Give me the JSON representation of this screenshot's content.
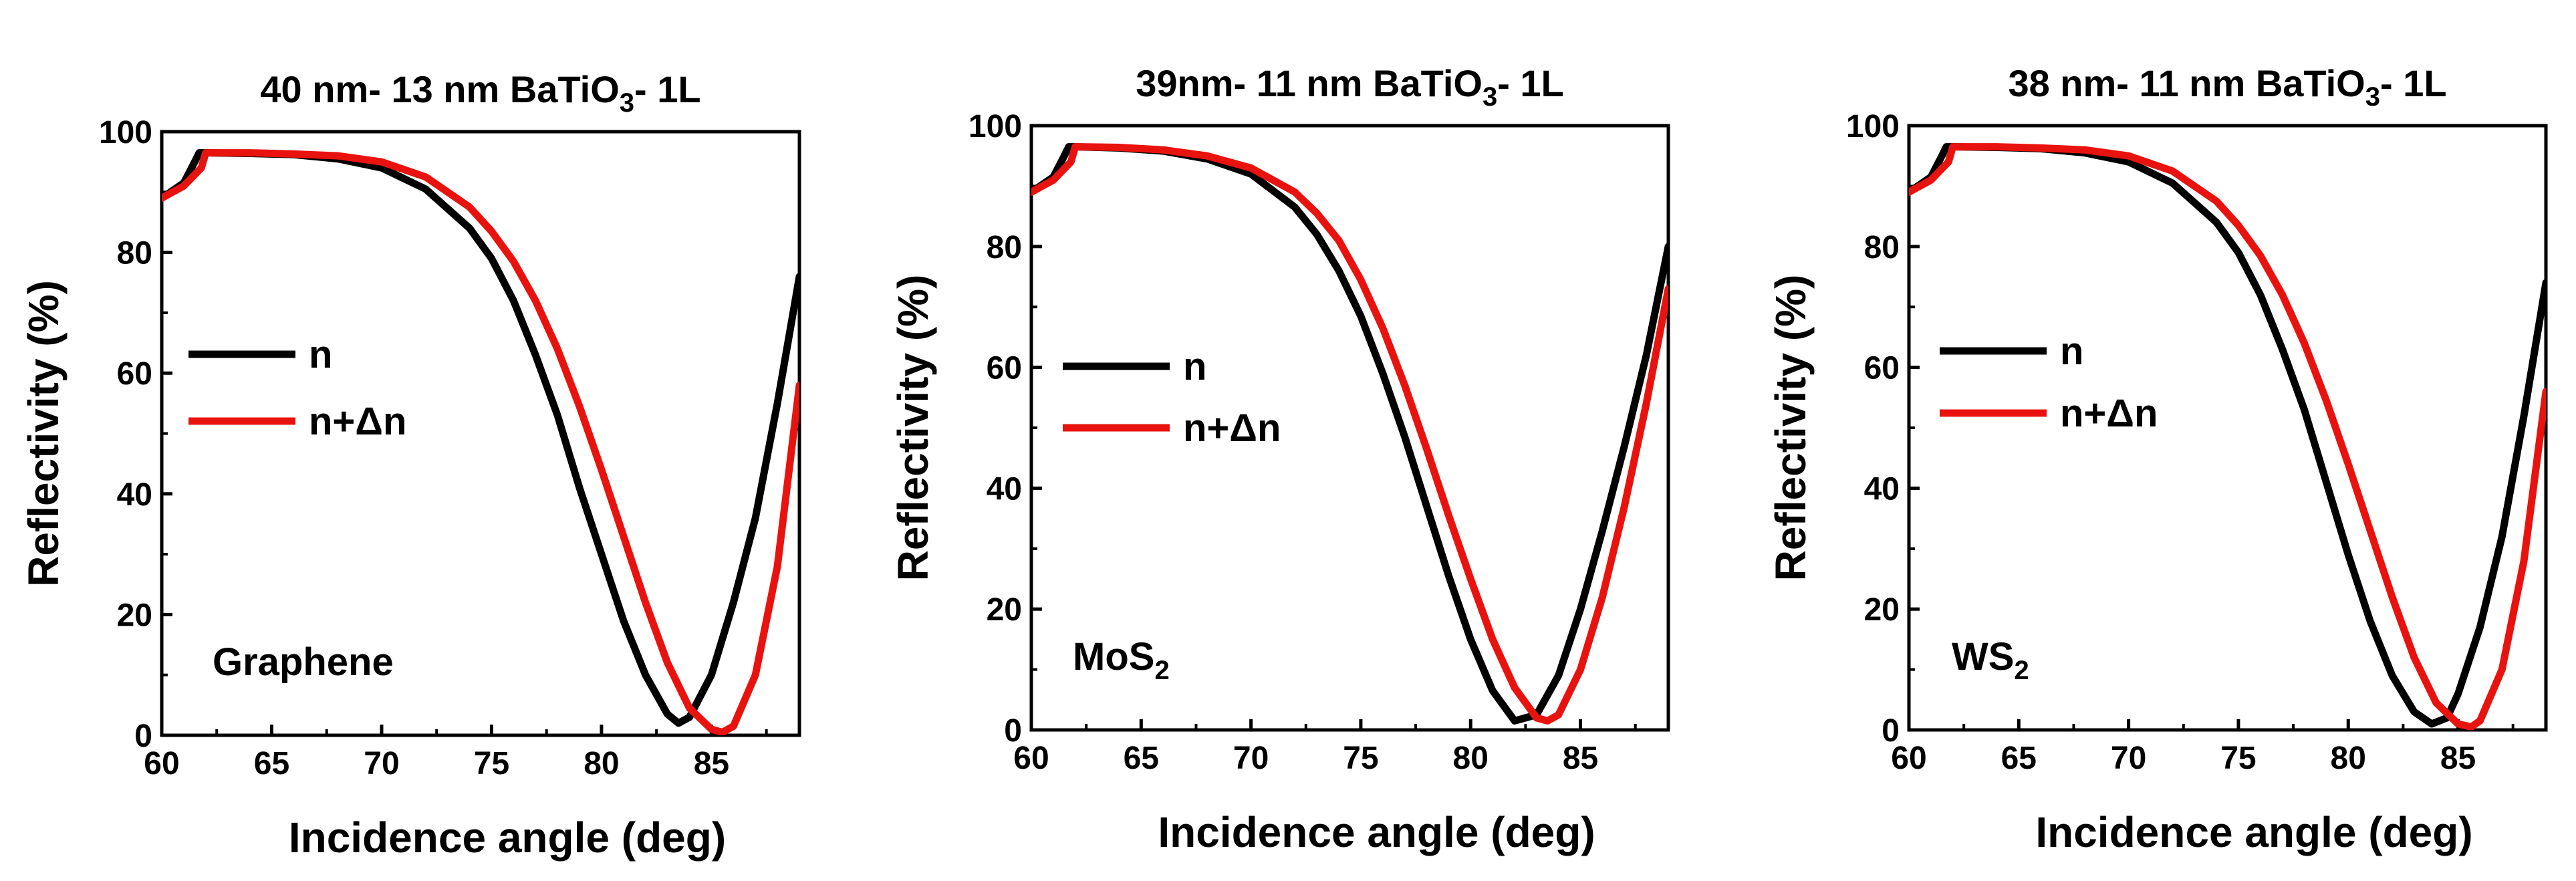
{
  "chart_data": [
    {
      "type": "line",
      "title": "40 nm- 13 nm BaTiO",
      "title_subscript": "3",
      "title_suffix": "- 1L",
      "xlabel": "Incidence angle (deg)",
      "ylabel": "Reflectivity (%)",
      "xlim": [
        60,
        89
      ],
      "ylim": [
        0,
        100
      ],
      "xticks": [
        60,
        65,
        70,
        75,
        80,
        85
      ],
      "yticks": [
        0,
        20,
        40,
        60,
        80,
        100
      ],
      "material": "Graphene",
      "material_subscript": "",
      "legend": [
        "n",
        "n+Δn"
      ],
      "series": [
        {
          "name": "n",
          "color": "#000000",
          "x": [
            60,
            61,
            61.5,
            61.7,
            62,
            64,
            66,
            68,
            70,
            72,
            74,
            75,
            76,
            77,
            78,
            79,
            80,
            81,
            82,
            83,
            83.5,
            84,
            85,
            86,
            87,
            88,
            89
          ],
          "y": [
            89,
            91.5,
            95,
            96.5,
            96.5,
            96.4,
            96.2,
            95.5,
            94,
            90.5,
            84,
            79,
            72,
            63,
            53,
            41,
            30,
            19,
            10,
            3.5,
            2,
            3,
            10,
            22,
            36,
            55,
            76
          ]
        },
        {
          "name": "n+Δn",
          "color": "#e8130f",
          "x": [
            60,
            61,
            61.8,
            62,
            62.2,
            64,
            66,
            68,
            70,
            72,
            74,
            75,
            76,
            77,
            78,
            79,
            80,
            81,
            82,
            83,
            84,
            85,
            85.5,
            86,
            87,
            88,
            89
          ],
          "y": [
            89,
            91,
            94,
            96.5,
            96.5,
            96.5,
            96.3,
            96,
            95,
            92.5,
            87.5,
            83.5,
            78.5,
            72,
            64,
            54.5,
            44,
            33,
            22,
            12,
            4.5,
            1,
            0.5,
            1.5,
            10,
            28,
            58
          ]
        }
      ]
    },
    {
      "type": "line",
      "title": "39nm- 11 nm BaTiO",
      "title_subscript": "3",
      "title_suffix": "- 1L",
      "xlabel": "Incidence angle (deg)",
      "ylabel": "Reflectivity (%)",
      "xlim": [
        60,
        89
      ],
      "ylim": [
        0,
        100
      ],
      "xticks": [
        60,
        65,
        70,
        75,
        80,
        85
      ],
      "yticks": [
        0,
        20,
        40,
        60,
        80,
        100
      ],
      "material": "MoS",
      "material_subscript": "2",
      "legend": [
        "n",
        "n+Δn"
      ],
      "series": [
        {
          "name": "n",
          "color": "#000000",
          "x": [
            60,
            61,
            61.5,
            61.7,
            62,
            64,
            66,
            68,
            70,
            72,
            73,
            74,
            75,
            76,
            77,
            78,
            79,
            80,
            81,
            82,
            83,
            84,
            85,
            86,
            87,
            88,
            89
          ],
          "y": [
            89,
            91.5,
            95,
            96.5,
            96.5,
            96.3,
            95.8,
            94.5,
            92,
            86.5,
            82,
            76,
            68.5,
            59,
            48.5,
            37,
            25.5,
            15,
            6.5,
            1.5,
            2.5,
            9,
            20,
            33,
            47,
            62,
            80
          ]
        },
        {
          "name": "n+Δn",
          "color": "#e8130f",
          "x": [
            60,
            61,
            61.8,
            62,
            62.2,
            64,
            66,
            68,
            70,
            72,
            73,
            74,
            75,
            76,
            77,
            78,
            79,
            80,
            81,
            82,
            83,
            83.5,
            84,
            85,
            86,
            87,
            88,
            89
          ],
          "y": [
            89,
            91,
            94,
            96.5,
            96.5,
            96.4,
            96,
            95,
            93,
            89,
            85.5,
            81,
            74.5,
            66.5,
            57,
            46.5,
            35.5,
            25,
            15,
            7,
            2,
            1.5,
            2.5,
            10,
            22,
            37,
            54,
            73
          ]
        }
      ]
    },
    {
      "type": "line",
      "title": "38 nm- 11 nm BaTiO",
      "title_subscript": "3",
      "title_suffix": "- 1L",
      "xlabel": "Incidence angle (deg)",
      "ylabel": "Reflectivity (%)",
      "xlim": [
        60,
        89
      ],
      "ylim": [
        0,
        100
      ],
      "xticks": [
        60,
        65,
        70,
        75,
        80,
        85
      ],
      "yticks": [
        0,
        20,
        40,
        60,
        80,
        100
      ],
      "material": "WS",
      "material_subscript": "2",
      "legend": [
        "n",
        "n+Δn"
      ],
      "series": [
        {
          "name": "n",
          "color": "#000000",
          "x": [
            60,
            61,
            61.5,
            61.7,
            62,
            64,
            66,
            68,
            70,
            72,
            74,
            75,
            76,
            77,
            78,
            79,
            80,
            81,
            82,
            83,
            83.8,
            84.5,
            85,
            86,
            87,
            88,
            89
          ],
          "y": [
            89,
            91.5,
            95,
            96.5,
            96.5,
            96.4,
            96.2,
            95.5,
            94,
            90.5,
            84,
            79,
            72,
            63,
            53,
            41,
            29,
            18,
            9,
            3,
            1,
            2,
            6,
            17,
            32,
            52,
            74
          ]
        },
        {
          "name": "n+Δn",
          "color": "#e8130f",
          "x": [
            60,
            61,
            61.8,
            62,
            62.2,
            64,
            66,
            68,
            70,
            72,
            74,
            75,
            76,
            77,
            78,
            79,
            80,
            81,
            82,
            83,
            84,
            85,
            85.6,
            86,
            87,
            88,
            89
          ],
          "y": [
            89,
            91,
            94,
            96.5,
            96.5,
            96.5,
            96.3,
            96,
            95,
            92.5,
            87.5,
            83.5,
            78.5,
            72,
            64,
            54.5,
            44,
            33,
            22,
            12,
            4.5,
            1,
            0.5,
            1.5,
            10,
            28,
            56
          ]
        }
      ]
    }
  ]
}
